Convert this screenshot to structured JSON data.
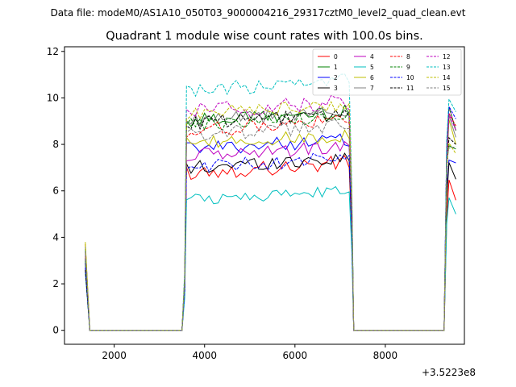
{
  "figure": {
    "suptitle": "Data file: modeM0/AS1A10_050T03_9000004216_29317cztM0_level2_quad_clean.evt"
  },
  "chart_data": {
    "type": "line",
    "title": "Quadrant 1 module wise count rates with 100.0s bins.",
    "xlabel": "",
    "ylabel": "",
    "x_offset_label": "+3.5223e8",
    "xlim": [
      900,
      9750
    ],
    "ylim": [
      -0.6,
      12.2
    ],
    "xticks": [
      2000,
      4000,
      6000,
      8000
    ],
    "yticks": [
      0,
      2,
      4,
      6,
      8,
      10,
      12
    ],
    "xtick_labels": [
      "2000",
      "4000",
      "6000",
      "8000"
    ],
    "ytick_labels": [
      "0",
      "2",
      "4",
      "6",
      "8",
      "10",
      "12"
    ],
    "grid": false,
    "legend": {
      "placement": "top-right",
      "columns": 4
    },
    "gti_segments": [
      {
        "x": [
          1360,
          1460
        ]
      },
      {
        "x": [
          3600,
          7200
        ]
      },
      {
        "x": [
          9360,
          9560
        ]
      }
    ],
    "gaps": [
      {
        "x_start": 1460,
        "x_end": 3500
      },
      {
        "x_start": 7300,
        "x_end": 9300
      }
    ],
    "series": [
      {
        "name": "0",
        "color": "#ff0000",
        "dash": "solid",
        "start": 3.7,
        "level": 6.8,
        "wobble": 0.35,
        "end": 5.6
      },
      {
        "name": "1",
        "color": "#008000",
        "dash": "solid",
        "start": 3.4,
        "level": 9.0,
        "wobble": 0.3,
        "end": 7.8
      },
      {
        "name": "2",
        "color": "#0000ff",
        "dash": "solid",
        "start": 2.9,
        "level": 7.8,
        "wobble": 0.3,
        "end": 7.2
      },
      {
        "name": "3",
        "color": "#000000",
        "dash": "solid",
        "start": 3.1,
        "level": 7.0,
        "wobble": 0.3,
        "end": 6.5
      },
      {
        "name": "4",
        "color": "#bf00bf",
        "dash": "solid",
        "start": 3.5,
        "level": 7.5,
        "wobble": 0.3,
        "end": 8.6
      },
      {
        "name": "5",
        "color": "#00bfbf",
        "dash": "solid",
        "start": 2.5,
        "level": 5.6,
        "wobble": 0.25,
        "end": 5.0
      },
      {
        "name": "6",
        "color": "#bfbf00",
        "dash": "solid",
        "start": 3.8,
        "level": 8.0,
        "wobble": 0.3,
        "end": 8.0
      },
      {
        "name": "7",
        "color": "#808080",
        "dash": "solid",
        "start": 3.6,
        "level": 9.0,
        "wobble": 0.3,
        "end": 8.3
      },
      {
        "name": "8",
        "color": "#ff0000",
        "dash": "dashed",
        "start": 3.2,
        "level": 8.6,
        "wobble": 0.35,
        "end": 8.8
      },
      {
        "name": "9",
        "color": "#008000",
        "dash": "dashed",
        "start": 3.0,
        "level": 8.8,
        "wobble": 0.3,
        "end": 8.6
      },
      {
        "name": "10",
        "color": "#0000ff",
        "dash": "dashed",
        "start": 2.7,
        "level": 7.0,
        "wobble": 0.3,
        "end": 9.1
      },
      {
        "name": "11",
        "color": "#000000",
        "dash": "dashed",
        "start": 2.6,
        "level": 8.9,
        "wobble": 0.3,
        "end": 8.0
      },
      {
        "name": "12",
        "color": "#bf00bf",
        "dash": "dashed",
        "start": 3.3,
        "level": 9.4,
        "wobble": 0.35,
        "end": 8.6
      },
      {
        "name": "13",
        "color": "#00bfbf",
        "dash": "dashed",
        "start": 3.5,
        "level": 10.3,
        "wobble": 0.35,
        "end": 9.4
      },
      {
        "name": "14",
        "color": "#bfbf00",
        "dash": "dashed",
        "start": 3.7,
        "level": 9.3,
        "wobble": 0.3,
        "end": 7.6
      },
      {
        "name": "15",
        "color": "#808080",
        "dash": "dashed",
        "start": 3.4,
        "level": 8.4,
        "wobble": 0.3,
        "end": 7.9
      }
    ]
  }
}
